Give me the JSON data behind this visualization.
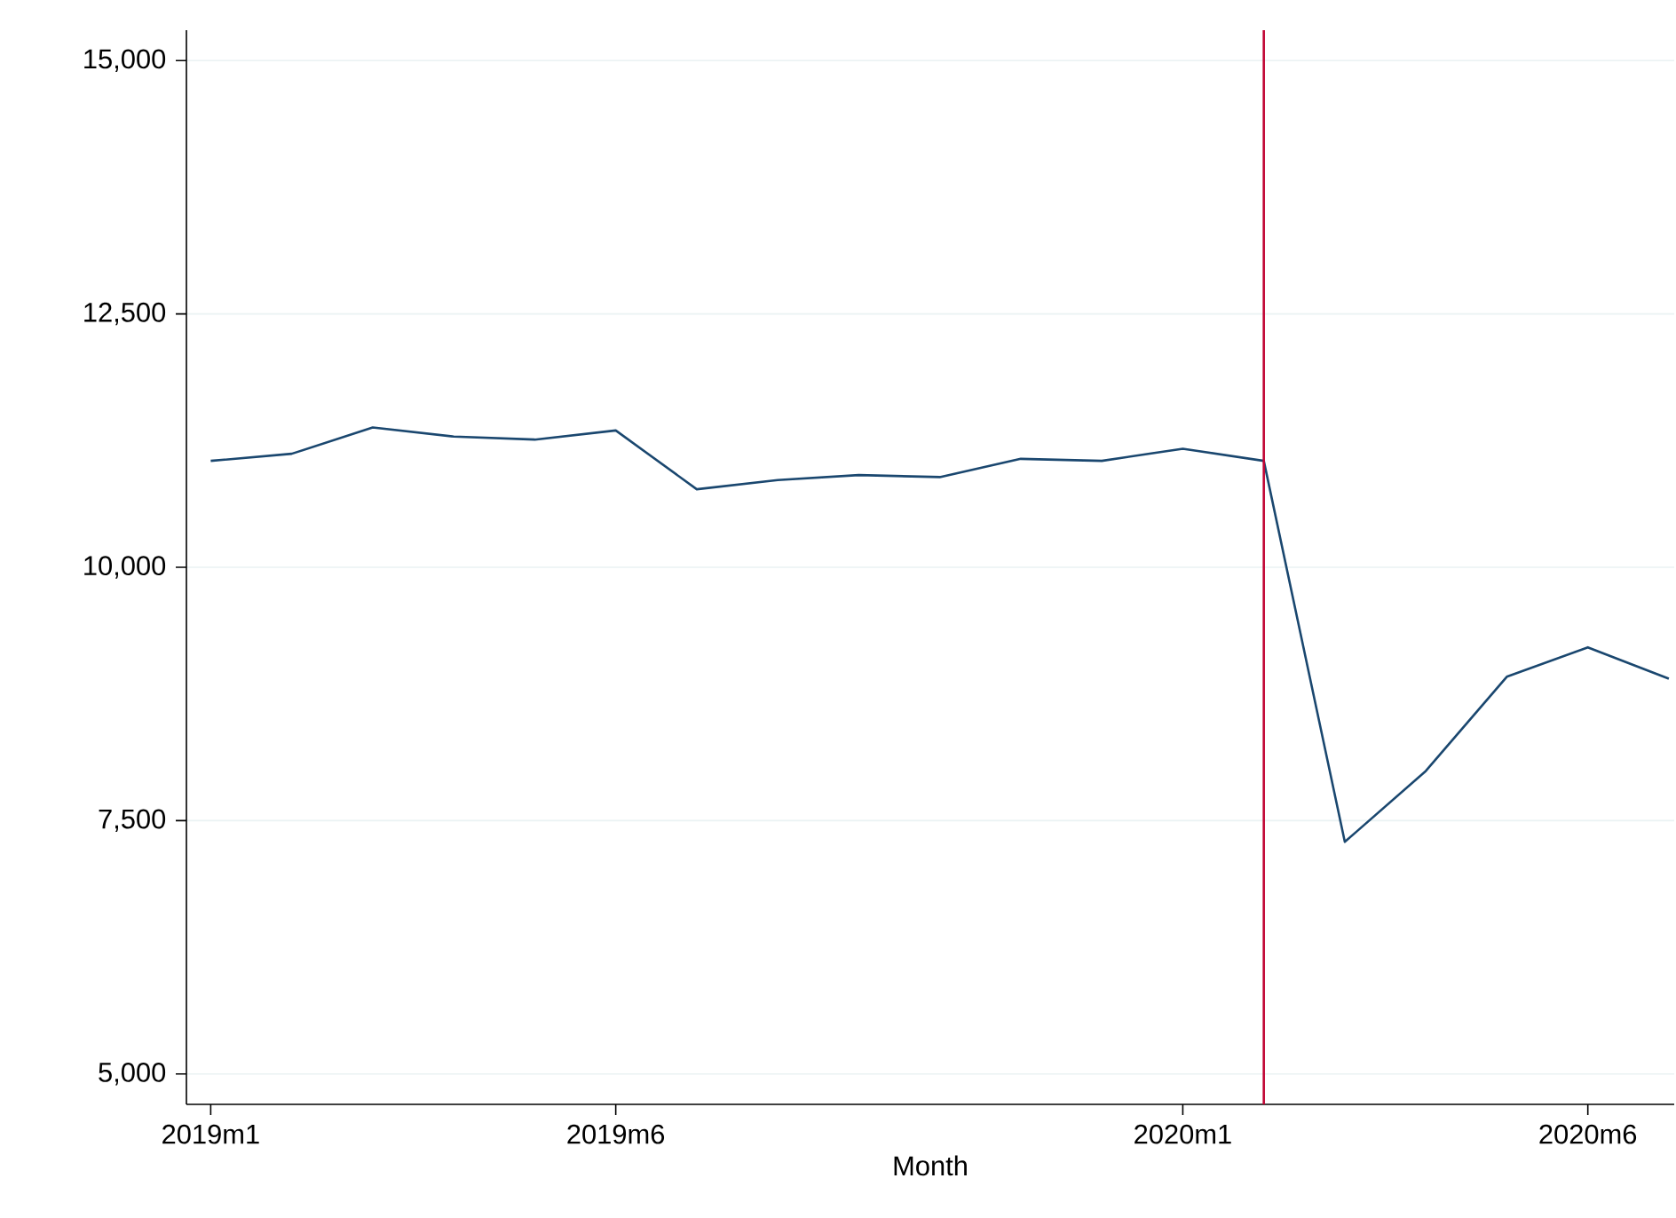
{
  "chart_data": {
    "type": "line",
    "xlabel": "Month",
    "x": [
      "2019-01",
      "2019-02",
      "2019-03",
      "2019-04",
      "2019-05",
      "2019-06",
      "2019-07",
      "2019-08",
      "2019-09",
      "2019-10",
      "2019-11",
      "2019-12",
      "2020-01",
      "2020-02",
      "2020-03",
      "2020-04",
      "2020-05",
      "2020-06",
      "2020-07"
    ],
    "series": [
      {
        "color": "#1a476f",
        "values": [
          11050,
          11120,
          11380,
          11290,
          11260,
          11350,
          10770,
          10860,
          10910,
          10890,
          11070,
          11050,
          11170,
          11050,
          7290,
          7990,
          8920,
          9210,
          8900
        ]
      }
    ],
    "xlim": [
      "2018-12-22",
      "2020-07-03"
    ],
    "xticks": [
      {
        "value": "2019-01",
        "label": "2019m1"
      },
      {
        "value": "2019-06",
        "label": "2019m6"
      },
      {
        "value": "2020-01",
        "label": "2020m1"
      },
      {
        "value": "2020-06",
        "label": "2020m6"
      }
    ],
    "ylim": [
      4700,
      15300
    ],
    "yticks": [
      {
        "value": 5000,
        "label": "5,000"
      },
      {
        "value": 7500,
        "label": "7,500"
      },
      {
        "value": 10000,
        "label": "10,000"
      },
      {
        "value": 12500,
        "label": "12,500"
      },
      {
        "value": 15000,
        "label": "15,000"
      }
    ],
    "grid": "y",
    "marker": "none",
    "line_style": "solid",
    "ref_lines": [
      {
        "axis": "x",
        "value": "2020-02",
        "color": "#c10534"
      }
    ]
  }
}
